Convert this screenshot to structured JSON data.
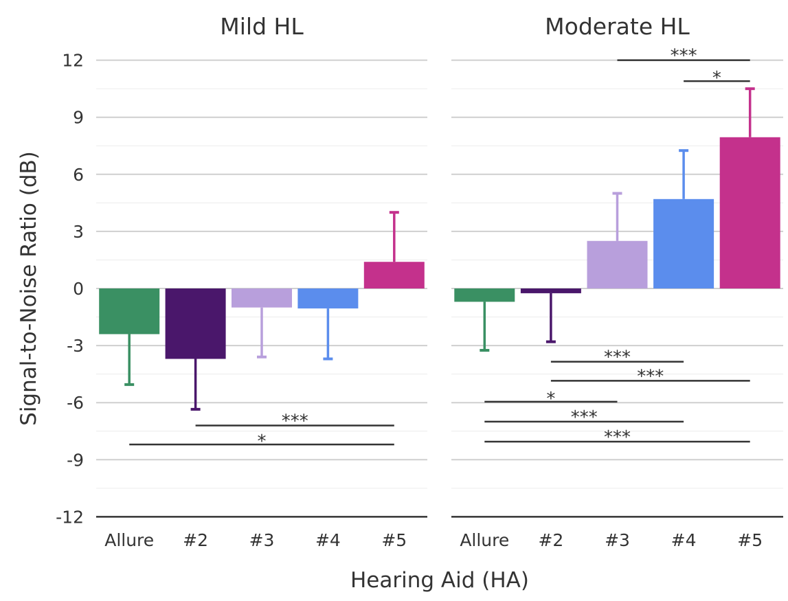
{
  "chart_data": {
    "type": "bar",
    "ylabel": "Signal-to-Noise Ratio (dB)",
    "xlabel": "Hearing Aid (HA)",
    "ylim": [
      -12,
      12
    ],
    "yticks": [
      12,
      9,
      6,
      3,
      0,
      -3,
      -6,
      -9,
      -12
    ],
    "ytick_labels": [
      "12",
      "9",
      "6",
      "3",
      "0",
      "-3",
      "-6",
      "-9",
      "-12"
    ],
    "grid": true,
    "categories": [
      "Allure",
      "#2",
      "#3",
      "#4",
      "#5"
    ],
    "colors": [
      "#3a9063",
      "#4a176b",
      "#b89fdc",
      "#5b8ded",
      "#c4318c"
    ],
    "panels": [
      {
        "title": "Mild HL",
        "values": [
          -2.4,
          -3.7,
          -1.0,
          -1.05,
          1.4
        ],
        "error": [
          2.65,
          2.65,
          2.6,
          2.65,
          2.6
        ],
        "significance": [
          {
            "from": "#2",
            "to": "#5",
            "label": "***",
            "y": -7.2
          },
          {
            "from": "Allure",
            "to": "#5",
            "label": "*",
            "y": -8.2
          }
        ]
      },
      {
        "title": "Moderate HL",
        "values": [
          -0.7,
          -0.25,
          2.5,
          4.7,
          7.95
        ],
        "error": [
          2.55,
          2.55,
          2.5,
          2.55,
          2.55
        ],
        "significance": [
          {
            "from": "#3",
            "to": "#5",
            "label": "***",
            "y": 12
          },
          {
            "from": "#4",
            "to": "#5",
            "label": "*",
            "y": 10.9
          },
          {
            "from": "#2",
            "to": "#4",
            "label": "***",
            "y": -3.85
          },
          {
            "from": "#2",
            "to": "#5",
            "label": "***",
            "y": -4.85
          },
          {
            "from": "Allure",
            "to": "#3",
            "label": "*",
            "y": -5.95
          },
          {
            "from": "Allure",
            "to": "#4",
            "label": "***",
            "y": -7.0
          },
          {
            "from": "Allure",
            "to": "#5",
            "label": "***",
            "y": -8.05
          }
        ]
      }
    ]
  }
}
